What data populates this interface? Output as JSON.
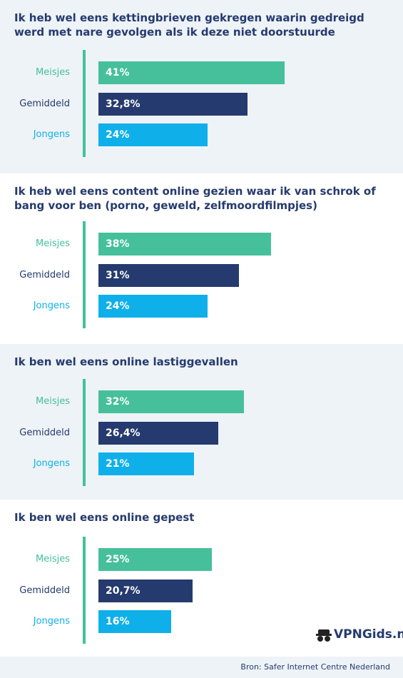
{
  "chart_data": [
    {
      "type": "bar",
      "title": "Ik heb wel eens kettingbrieven gekregen waarin gedreigd werd met nare gevolgen als ik deze niet doorstuurde",
      "categories": [
        "Meisjes",
        "Gemiddeld",
        "Jongens"
      ],
      "values": [
        41,
        32.8,
        24
      ],
      "value_labels": [
        "41%",
        "32,8%",
        "24%"
      ],
      "colors": [
        "#45c09a",
        "#253a6e",
        "#0fb0ea"
      ]
    },
    {
      "type": "bar",
      "title": "Ik heb wel eens content online gezien waar ik van schrok of bang voor ben (porno, geweld, zelfmoordfilmpjes)",
      "categories": [
        "Meisjes",
        "Gemiddeld",
        "Jongens"
      ],
      "values": [
        38,
        31,
        24
      ],
      "value_labels": [
        "38%",
        "31%",
        "24%"
      ],
      "colors": [
        "#45c09a",
        "#253a6e",
        "#0fb0ea"
      ]
    },
    {
      "type": "bar",
      "title": "Ik ben wel eens online lastiggevallen",
      "categories": [
        "Meisjes",
        "Gemiddeld",
        "Jongens"
      ],
      "values": [
        32,
        26.4,
        21
      ],
      "value_labels": [
        "32%",
        "26,4%",
        "21%"
      ],
      "colors": [
        "#45c09a",
        "#253a6e",
        "#0fb0ea"
      ]
    },
    {
      "type": "bar",
      "title": "Ik ben wel eens online gepest",
      "categories": [
        "Meisjes",
        "Gemiddeld",
        "Jongens"
      ],
      "values": [
        25,
        20.7,
        16
      ],
      "value_labels": [
        "25%",
        "20,7%",
        "16%"
      ],
      "colors": [
        "#45c09a",
        "#253a6e",
        "#0fb0ea"
      ]
    }
  ],
  "logo": "VPNGids.nl",
  "source": "Bron: Safer Internet Centre Nederland"
}
